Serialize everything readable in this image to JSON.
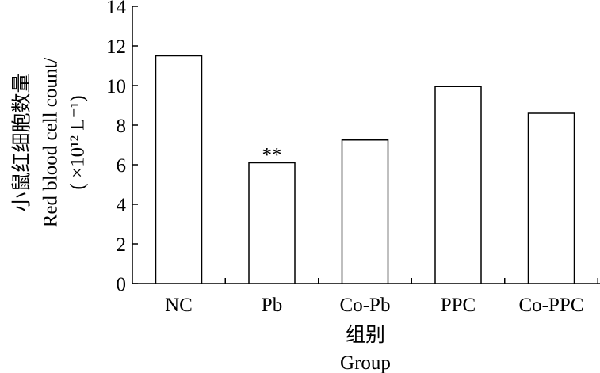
{
  "chart_data": {
    "type": "bar",
    "categories": [
      "NC",
      "Pb",
      "Co-Pb",
      "PPC",
      "Co-PPC"
    ],
    "values": [
      11.5,
      6.1,
      7.25,
      9.95,
      8.6
    ],
    "annotations": [
      "",
      "**",
      "",
      "",
      ""
    ],
    "ylim": [
      0,
      14
    ],
    "yticks": [
      "0",
      "2",
      "4",
      "6",
      "8",
      "10",
      "12",
      "14"
    ],
    "ylabel_lines": [
      "小鼠红细胞数量",
      "Red blood cell count/",
      "( ×10¹² L⁻¹)"
    ],
    "xlabel_lines": [
      "组别",
      "Group"
    ],
    "grid": false,
    "legend": "none"
  },
  "colors": {
    "bar_fill": "#ffffff",
    "stroke": "#000000"
  }
}
